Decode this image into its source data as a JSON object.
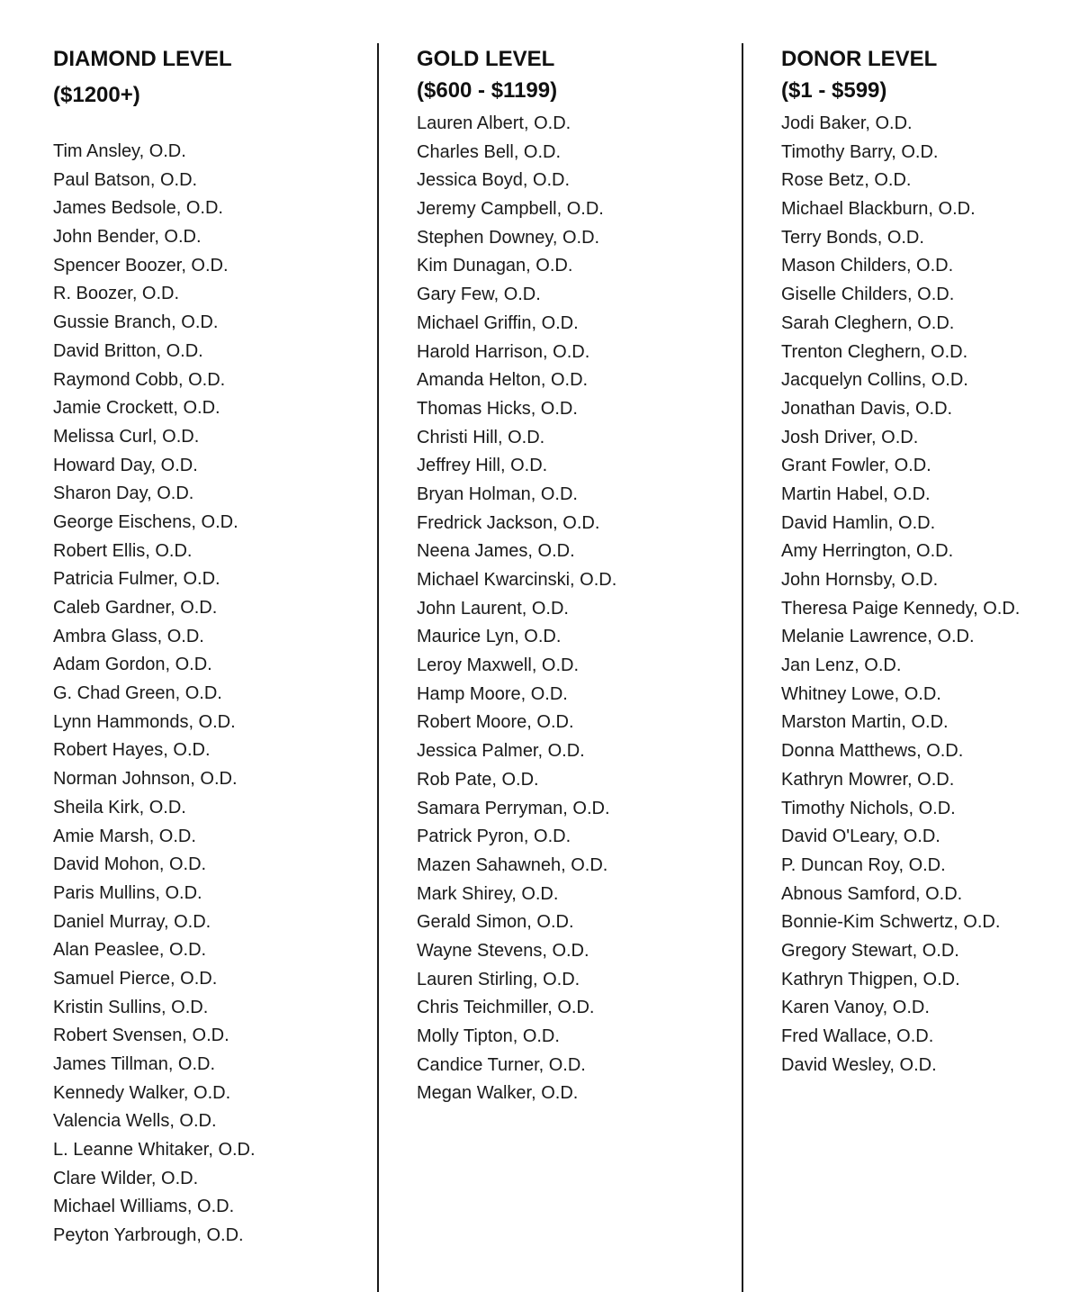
{
  "columns": [
    {
      "title": "DIAMOND LEVEL",
      "range": "($1200+)",
      "names": [
        "Tim Ansley, O.D.",
        "Paul Batson, O.D.",
        "James Bedsole, O.D.",
        "John Bender, O.D.",
        "Spencer Boozer, O.D.",
        "R. Boozer, O.D.",
        "Gussie Branch, O.D.",
        "David Britton, O.D.",
        "Raymond Cobb, O.D.",
        "Jamie Crockett, O.D.",
        "Melissa Curl, O.D.",
        "Howard Day, O.D.",
        "Sharon Day, O.D.",
        "George Eischens, O.D.",
        "Robert Ellis, O.D.",
        "Patricia Fulmer, O.D.",
        "Caleb Gardner, O.D.",
        "Ambra Glass, O.D.",
        "Adam Gordon, O.D.",
        "G. Chad Green, O.D.",
        "Lynn Hammonds, O.D.",
        "Robert Hayes, O.D.",
        "Norman Johnson, O.D.",
        "Sheila Kirk, O.D.",
        "Amie Marsh, O.D.",
        "David Mohon, O.D.",
        "Paris Mullins, O.D.",
        "Daniel Murray, O.D.",
        "Alan Peaslee, O.D.",
        "Samuel Pierce, O.D.",
        "Kristin Sullins, O.D.",
        "Robert Svensen, O.D.",
        "James Tillman, O.D.",
        "Kennedy Walker, O.D.",
        "Valencia Wells, O.D.",
        "L. Leanne Whitaker, O.D.",
        "Clare Wilder, O.D.",
        "Michael Williams, O.D.",
        "Peyton Yarbrough, O.D."
      ]
    },
    {
      "title": "GOLD LEVEL",
      "range": "($600 - $1199)",
      "names": [
        "Lauren Albert, O.D.",
        "Charles Bell, O.D.",
        "Jessica Boyd, O.D.",
        "Jeremy Campbell, O.D.",
        "Stephen Downey, O.D.",
        "Kim Dunagan, O.D.",
        "Gary Few, O.D.",
        "Michael Griffin, O.D.",
        "Harold Harrison, O.D.",
        "Amanda Helton, O.D.",
        "Thomas Hicks, O.D.",
        "Christi Hill, O.D.",
        "Jeffrey Hill, O.D.",
        "Bryan Holman, O.D.",
        "Fredrick Jackson, O.D.",
        "Neena James, O.D.",
        "Michael Kwarcinski, O.D.",
        "John Laurent, O.D.",
        "Maurice Lyn, O.D.",
        "Leroy Maxwell, O.D.",
        "Hamp Moore, O.D.",
        "Robert Moore, O.D.",
        "Jessica Palmer, O.D.",
        "Rob Pate, O.D.",
        "Samara Perryman, O.D.",
        "Patrick Pyron, O.D.",
        "Mazen Sahawneh, O.D.",
        "Mark Shirey, O.D.",
        "Gerald Simon, O.D.",
        "Wayne Stevens, O.D.",
        "Lauren Stirling, O.D.",
        "Chris Teichmiller, O.D.",
        "Molly Tipton, O.D.",
        "Candice Turner, O.D.",
        "Megan Walker, O.D."
      ]
    },
    {
      "title": "DONOR LEVEL",
      "range": "($1 - $599)",
      "names": [
        "Jodi Baker, O.D.",
        "Timothy Barry, O.D.",
        "Rose Betz, O.D.",
        "Michael Blackburn, O.D.",
        "Terry Bonds, O.D.",
        "Mason Childers, O.D.",
        "Giselle Childers, O.D.",
        "Sarah Cleghern, O.D.",
        "Trenton Cleghern, O.D.",
        "Jacquelyn Collins, O.D.",
        "Jonathan Davis, O.D.",
        "Josh Driver, O.D.",
        "Grant Fowler, O.D.",
        "Martin Habel, O.D.",
        "David Hamlin, O.D.",
        "Amy Herrington, O.D.",
        "John Hornsby, O.D.",
        "Theresa Paige Kennedy, O.D.",
        "Melanie Lawrence, O.D.",
        "Jan Lenz, O.D.",
        "Whitney Lowe, O.D.",
        "Marston Martin, O.D.",
        "Donna Matthews, O.D.",
        "Kathryn Mowrer, O.D.",
        "Timothy Nichols, O.D.",
        "David O'Leary, O.D.",
        "P. Duncan Roy, O.D.",
        "Abnous Samford, O.D.",
        "Bonnie-Kim Schwertz, O.D.",
        "Gregory Stewart, O.D.",
        "Kathryn Thigpen, O.D.",
        "Karen Vanoy, O.D.",
        "Fred Wallace, O.D.",
        "David Wesley, O.D."
      ]
    }
  ]
}
